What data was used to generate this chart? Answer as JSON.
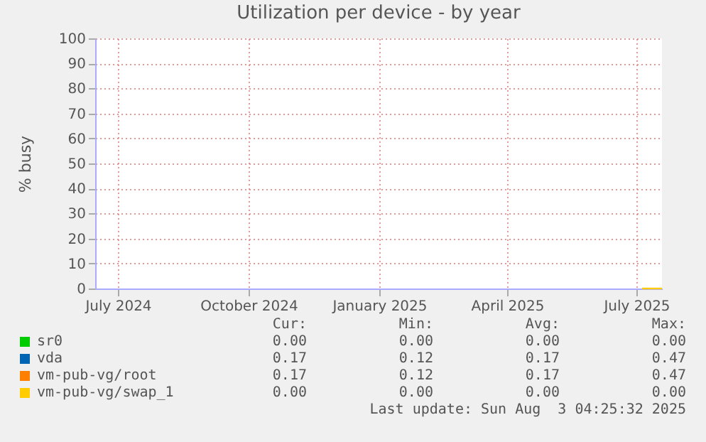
{
  "chart_data": {
    "type": "line",
    "title": "Utilization per device - by year",
    "ylabel": "% busy",
    "xlim": [
      "2024-06-15",
      "2025-07-19"
    ],
    "xticks": [
      {
        "value": "2024-07-01",
        "label": "July 2024"
      },
      {
        "value": "2024-10-01",
        "label": "October 2024"
      },
      {
        "value": "2025-01-01",
        "label": "January 2025"
      },
      {
        "value": "2025-04-01",
        "label": "April 2025"
      },
      {
        "value": "2025-07-01",
        "label": "July 2025"
      }
    ],
    "ylim": [
      0,
      100
    ],
    "yticks": [
      0,
      10,
      20,
      30,
      40,
      50,
      60,
      70,
      80,
      90,
      100
    ],
    "x": [
      "2025-07-05",
      "2025-07-19"
    ],
    "series": [
      {
        "name": "sr0",
        "color": "#00cc00",
        "values": [
          null,
          null
        ]
      },
      {
        "name": "vda",
        "color": "#0066b3",
        "values": [
          null,
          null
        ]
      },
      {
        "name": "vm-pub-vg/root",
        "color": "#ff8000",
        "values": [
          null,
          null
        ]
      },
      {
        "name": "vm-pub-vg/swap_1",
        "color": "#ffcc00",
        "values": [
          0,
          0
        ]
      }
    ],
    "grid": true,
    "legend": "bottom",
    "line_style": "solid",
    "annotations": [
      "Cur:",
      "Min:",
      "Avg:",
      "Max:",
      "0.00",
      "0.00",
      "0.00",
      "0.00",
      "0.17",
      "0.12",
      "0.17",
      "0.47",
      "0.17",
      "0.12",
      "0.17",
      "0.47",
      "0.00",
      "0.00",
      "0.00",
      "0.00",
      "Last update: Sun Aug  3 04:25:32 2025"
    ]
  }
}
